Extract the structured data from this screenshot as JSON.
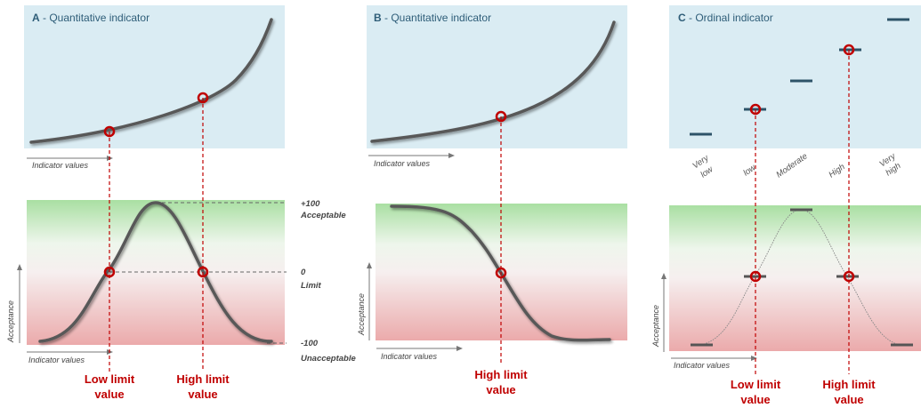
{
  "panels": {
    "a": {
      "letter": "A",
      "title": " - Quantitative indicator"
    },
    "b": {
      "letter": "B",
      "title": " - Quantitative indicator"
    },
    "c": {
      "letter": "C",
      "title": " - Ordinal indicator"
    }
  },
  "axes": {
    "indicator_values": "Indicator values",
    "acceptance": "Acceptance"
  },
  "scale": {
    "top_value": "+100",
    "top_label": "Acceptable",
    "mid_value": "0",
    "mid_label": "Limit",
    "bottom_value": "-100",
    "bottom_label": "Unacceptable"
  },
  "categories": [
    "Very low",
    "low",
    "Moderate",
    "High",
    "Very high"
  ],
  "limits": {
    "low_line1": "Low limit",
    "low_line2": "value",
    "high_line1": "High limit",
    "high_line2": "value"
  },
  "colors": {
    "panel_bg": "#daecf3",
    "accept_green": "#a9dfa2",
    "reject_red": "#ebaaab",
    "curve": "#595959",
    "limit_red": "#c00000",
    "title_blue": "#2e5d78",
    "ordinal_bar": "#2d5368"
  }
}
